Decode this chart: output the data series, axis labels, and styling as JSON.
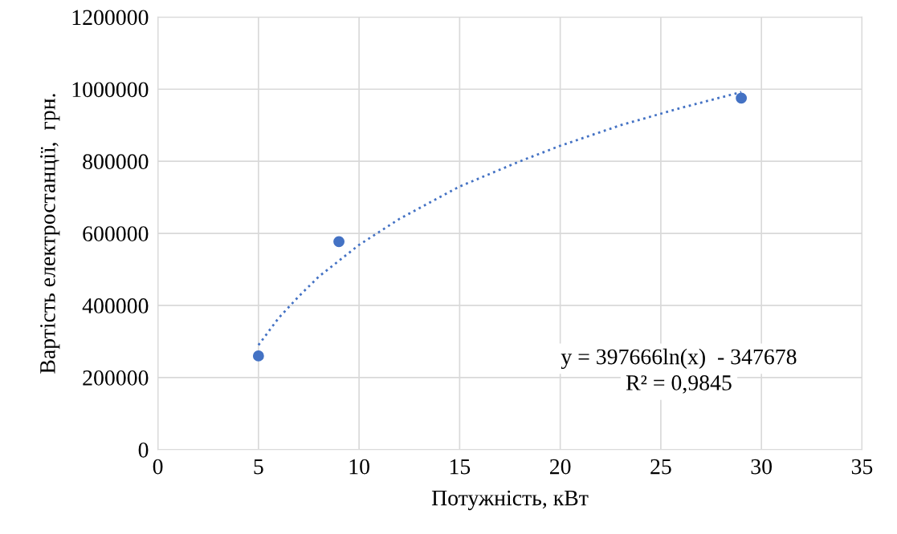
{
  "chart_data": {
    "type": "scatter",
    "xlabel": "Потужність, кВт",
    "ylabel": "Вартість електростанції,  грн.",
    "xlim": [
      0,
      35
    ],
    "xticks": [
      0,
      5,
      10,
      15,
      20,
      25,
      30,
      35
    ],
    "ylim": [
      0,
      1200000
    ],
    "yticks": [
      0,
      200000,
      400000,
      600000,
      800000,
      1000000,
      1200000
    ],
    "grid": true,
    "legend": false,
    "series": [
      {
        "color": "#4472c4",
        "marker": "circle",
        "x": [
          5,
          9,
          29
        ],
        "values": [
          260000,
          577000,
          975000
        ]
      },
      {
        "type": "line",
        "color": "#4472c4",
        "line_style": "dotted",
        "marker": "none",
        "x": [
          5,
          6,
          7,
          8,
          10,
          12,
          15,
          18,
          20,
          23,
          26,
          29
        ],
        "values": [
          290000,
          365000,
          425000,
          480000,
          568000,
          640000,
          730000,
          800000,
          843000,
          900000,
          948000,
          992000
        ]
      }
    ],
    "annotations": [
      "y = 397666ln(x)  - 347678",
      "R² = 0,9845"
    ]
  }
}
